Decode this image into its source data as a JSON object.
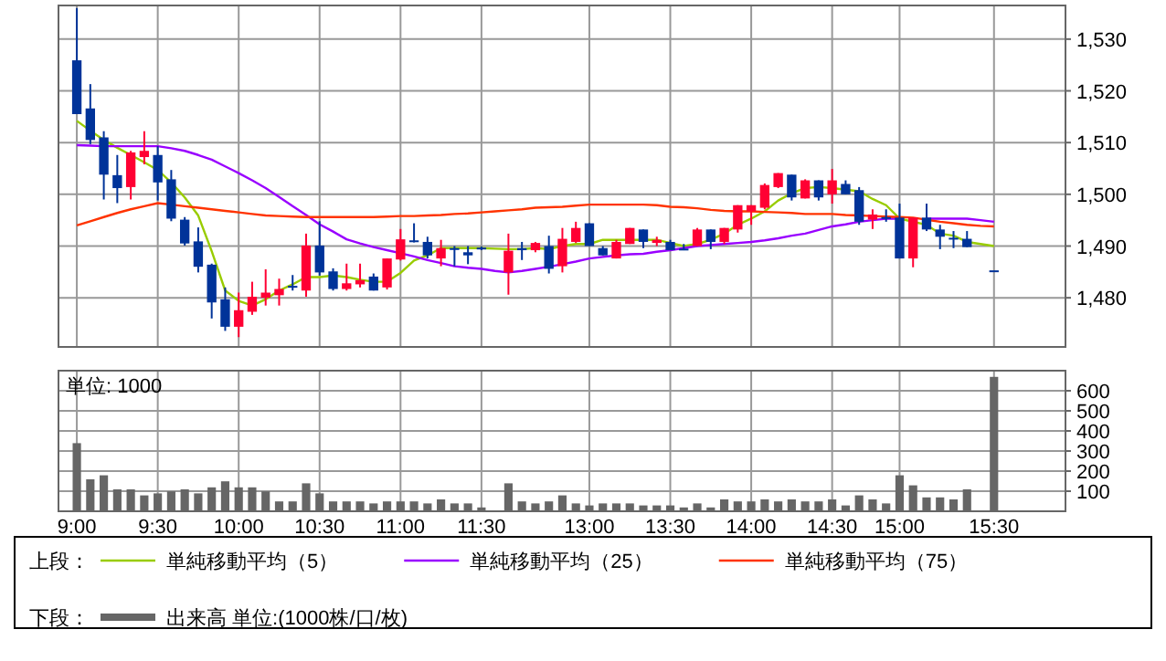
{
  "chart_data": [
    {
      "type": "candlestick",
      "categories": [
        null,
        null,
        null,
        null,
        null,
        null,
        null,
        null,
        null,
        null,
        null,
        null,
        null,
        null,
        null,
        null,
        null,
        null,
        null,
        null,
        null,
        null,
        null,
        null,
        null,
        null,
        null,
        null,
        null,
        null,
        null,
        null,
        null,
        null,
        null,
        null,
        null,
        null,
        null,
        null,
        null,
        null,
        null,
        null,
        null,
        null,
        null,
        null,
        null,
        null,
        null,
        null,
        null,
        null,
        null,
        null,
        null,
        null,
        null,
        null,
        null,
        null,
        null,
        null,
        null,
        null,
        null,
        null,
        null
      ],
      "ohlc": [
        [
          1525.9,
          1536,
          1515.5,
          1515.5
        ],
        [
          1516.6,
          1521.3,
          1509.7,
          1510.5
        ],
        [
          1511,
          1512.2,
          1499,
          1503.8
        ],
        [
          1503.7,
          1507.6,
          1498.3,
          1501.2
        ],
        [
          1501.4,
          1508.4,
          1499,
          1508.1
        ],
        [
          1507.2,
          1512.2,
          1505.8,
          1508.4
        ],
        [
          1507.6,
          1509.3,
          1498.8,
          1502.3
        ],
        [
          1502.9,
          1504.7,
          1494.8,
          1495.3
        ],
        [
          1495.1,
          1495.6,
          1490.1,
          1490.5
        ],
        [
          1490.9,
          1493.6,
          1484.9,
          1486
        ],
        [
          1486.4,
          1486.6,
          1476,
          1479.1
        ],
        [
          1479.7,
          1482,
          1473.6,
          1474.4
        ],
        [
          1474.4,
          1481,
          1472.4,
          1477.6
        ],
        [
          1477.3,
          1483.1,
          1476.7,
          1480.2
        ],
        [
          1480,
          1485.5,
          1478.5,
          1481
        ],
        [
          1480.5,
          1483.7,
          1478.5,
          1481.7
        ],
        [
          1482.3,
          1484.4,
          1481.4,
          1482.2
        ],
        [
          1481.4,
          1492.4,
          1480.2,
          1490.1
        ],
        [
          1490.1,
          1494.8,
          1484.3,
          1484.9
        ],
        [
          1485.1,
          1485.7,
          1481.4,
          1481.7
        ],
        [
          1481.7,
          1486.6,
          1481.4,
          1482.8
        ],
        [
          1482.6,
          1486.6,
          1482,
          1483.4
        ],
        [
          1484.1,
          1484.7,
          1481.4,
          1481.4
        ],
        [
          1482,
          1487.6,
          1481.6,
          1487.6
        ],
        [
          1487.4,
          1493.3,
          1487.2,
          1491.3
        ],
        [
          1491.1,
          1494.4,
          1490.7,
          1491
        ],
        [
          1490.8,
          1491.8,
          1487.6,
          1488.2
        ],
        [
          1487.6,
          1491.2,
          1486.1,
          1489.6
        ],
        [
          1489.6,
          1490,
          1486.1,
          1489.4
        ],
        [
          1488.8,
          1490,
          1486.5,
          1488.2
        ],
        [
          1489.7,
          1489.9,
          1489.2,
          1489.6
        ],
        null,
        [
          1484.9,
          1492.4,
          1480.6,
          1489.1
        ],
        [
          1489.6,
          1490.8,
          1487.3,
          1489.2
        ],
        [
          1489.2,
          1490.8,
          1488.8,
          1490.6
        ],
        [
          1490,
          1492,
          1484.7,
          1485.6
        ],
        [
          1486.1,
          1493.5,
          1484.9,
          1491.4
        ],
        [
          1490.8,
          1494.7,
          1490.6,
          1493.5
        ],
        [
          1494.4,
          1494.4,
          1490,
          1490
        ],
        [
          1489.6,
          1490,
          1488.2,
          1488.2
        ],
        [
          1487.6,
          1491.2,
          1487.6,
          1490.8
        ],
        [
          1490.4,
          1493.5,
          1490.4,
          1493.5
        ],
        [
          1493.2,
          1493.2,
          1489.6,
          1490.8
        ],
        [
          1490.6,
          1491.8,
          1490,
          1491.2
        ],
        [
          1490.8,
          1491.2,
          1489.2,
          1489.2
        ],
        [
          1489.5,
          1490.4,
          1489.2,
          1489.4
        ],
        [
          1490,
          1493.5,
          1490,
          1493.2
        ],
        [
          1493.2,
          1493.2,
          1489.4,
          1490.8
        ],
        [
          1490.8,
          1493.5,
          1490.4,
          1493.5
        ],
        [
          1493.2,
          1497.9,
          1492.6,
          1497.9
        ],
        [
          1496.7,
          1497.9,
          1494.1,
          1497.9
        ],
        [
          1497.4,
          1502.1,
          1497.1,
          1501.8
        ],
        [
          1501.4,
          1504.1,
          1501.2,
          1504.1
        ],
        [
          1503.8,
          1503.8,
          1498.8,
          1499.4
        ],
        [
          1499.2,
          1502.9,
          1499.2,
          1502.7
        ],
        [
          1502.7,
          1502.7,
          1498.8,
          1499.4
        ],
        [
          1500,
          1504.9,
          1498.2,
          1502.7
        ],
        [
          1502,
          1502.7,
          1500,
          1500
        ],
        [
          1500.8,
          1501.4,
          1494.1,
          1494.7
        ],
        [
          1495.1,
          1497.1,
          1493.3,
          1496.1
        ],
        [
          1495.6,
          1497.1,
          1494.7,
          1495.5
        ],
        [
          1495.5,
          1498.2,
          1487.6,
          1487.6
        ],
        [
          1487.6,
          1495.5,
          1485.9,
          1495.5
        ],
        [
          1495.5,
          1498.2,
          1492.9,
          1493.2
        ],
        [
          1493.2,
          1494.1,
          1489.4,
          1491.8
        ],
        [
          1491.6,
          1492.9,
          1489.6,
          1491.5
        ],
        [
          1491.4,
          1492.9,
          1489.8,
          1489.8
        ],
        null,
        [
          1485.3,
          1485.3,
          1485.3,
          1485.3
        ]
      ],
      "colors": [
        "#003399",
        "#003399",
        "#003399",
        "#003399",
        "#ff0033",
        "#ff0033",
        "#003399",
        "#003399",
        "#003399",
        "#003399",
        "#003399",
        "#003399",
        "#ff0033",
        "#ff0033",
        "#ff0033",
        "#ff0033",
        "#003399",
        "#ff0033",
        "#003399",
        "#003399",
        "#ff0033",
        "#ff0033",
        "#003399",
        "#ff0033",
        "#ff0033",
        "#003399",
        "#003399",
        "#ff0033",
        "#003399",
        "#003399",
        "#003399",
        null,
        "#ff0033",
        "#003399",
        "#ff0033",
        "#003399",
        "#ff0033",
        "#ff0033",
        "#003399",
        "#003399",
        "#ff0033",
        "#ff0033",
        "#003399",
        "#ff0033",
        "#003399",
        "#003399",
        "#ff0033",
        "#003399",
        "#ff0033",
        "#ff0033",
        "#ff0033",
        "#ff0033",
        "#ff0033",
        "#003399",
        "#ff0033",
        "#003399",
        "#ff0033",
        "#003399",
        "#003399",
        "#ff0033",
        "#003399",
        "#003399",
        "#ff0033",
        "#003399",
        "#003399",
        "#003399",
        "#003399",
        null,
        "#003399"
      ],
      "series": [
        {
          "type": "line",
          "name": "単純移動平均（5）",
          "color": "#99cc00",
          "values": [
            1514.2,
            1512.3,
            1510.5,
            1509,
            1507.6,
            1506.2,
            1504.7,
            1502.3,
            1499.4,
            1495.9,
            1489,
            1481.4,
            1479.4,
            1478.5,
            1479.7,
            1481.4,
            1482.6,
            1484,
            1484,
            1484.3,
            1484,
            1483.5,
            1483.1,
            1483.1,
            1484.8,
            1487.2,
            1488.2,
            1489.6,
            1489.6,
            1489.6,
            1489.6,
            1489.5,
            1489.4,
            1489.4,
            1489.6,
            1489.4,
            1490,
            1490.4,
            1490.4,
            1491.2,
            1491.2,
            1491.2,
            1491.2,
            1491.2,
            1490.6,
            1490,
            1490.4,
            1491.2,
            1492.4,
            1494.1,
            1495.3,
            1496.7,
            1498.8,
            1500.2,
            1501.2,
            1501.4,
            1501.2,
            1500.9,
            1500.6,
            1499.1,
            1497.9,
            1495.3,
            1494.7,
            1494.1,
            1492.4,
            1492,
            1490.8,
            1490.4,
            1490
          ]
        },
        {
          "type": "line",
          "name": "単純移動平均（25）",
          "color": "#9900ff",
          "values": [
            1509.5,
            1509.4,
            1509.3,
            1509.3,
            1509.3,
            1509.3,
            1509.3,
            1508.9,
            1508.4,
            1507.6,
            1506.7,
            1505.4,
            1504.1,
            1502.7,
            1501.2,
            1499.5,
            1497.7,
            1496,
            1494.2,
            1492.8,
            1491.3,
            1490.5,
            1489.8,
            1489.2,
            1488.6,
            1488,
            1487.3,
            1486.7,
            1486.1,
            1485.8,
            1485.6,
            1485.2,
            1484.9,
            1485.2,
            1485.6,
            1486,
            1486.5,
            1487,
            1487.6,
            1487.9,
            1488.2,
            1488.4,
            1488.5,
            1488.9,
            1489.2,
            1489.6,
            1490,
            1490.2,
            1490.4,
            1490.6,
            1490.8,
            1491.1,
            1491.5,
            1492,
            1492.4,
            1493.1,
            1493.8,
            1494.2,
            1494.7,
            1495,
            1495.3,
            1495.3,
            null,
            1495.3,
            1495.3,
            1495.3,
            1495.3,
            1495,
            1494.7
          ]
        },
        {
          "type": "line",
          "name": "単純移動平均（75）",
          "color": "#ff3300",
          "values": [
            1494,
            1494.8,
            1495.6,
            1496.4,
            1497.1,
            1497.7,
            1498.3,
            1498,
            1497.7,
            1497.4,
            1497.1,
            1496.8,
            1496.5,
            1496.2,
            1495.9,
            1495.8,
            1495.7,
            1495.6,
            1495.6,
            1495.6,
            1495.6,
            1495.6,
            1495.6,
            1495.7,
            1495.8,
            1495.8,
            1495.9,
            1496,
            1496.2,
            1496.3,
            1496.5,
            1496.7,
            1496.9,
            1497.1,
            1497.4,
            1497.5,
            1497.6,
            1497.8,
            1498,
            1498,
            1498,
            1498,
            1498,
            1497.9,
            1497.6,
            1497.5,
            1497.3,
            1497,
            1496.8,
            1496.7,
            1496.7,
            1496.6,
            1496.5,
            1496.4,
            1496.2,
            1496.2,
            1496.2,
            1496,
            1495.9,
            1495.8,
            1495.7,
            1495.6,
            1495.5,
            1495.1,
            1494.7,
            1494.4,
            1494.1,
            1493.9,
            1493.8
          ]
        }
      ],
      "ylim": [
        1470.5,
        1536.5
      ],
      "yticks": [
        {
          "value": 1480,
          "label": "1,480"
        },
        {
          "value": 1490,
          "label": "1,490"
        },
        {
          "value": 1500,
          "label": "1,500"
        },
        {
          "value": 1510,
          "label": "1,510"
        },
        {
          "value": 1520,
          "label": "1,520"
        },
        {
          "value": 1530,
          "label": "1,530"
        }
      ],
      "grid": true,
      "tick_labels": "y",
      "legend": "bottom",
      "legend_title": "上段："
    },
    {
      "type": "bar",
      "categories": [
        "9:00",
        null,
        null,
        null,
        null,
        null,
        "9:30",
        null,
        null,
        null,
        null,
        null,
        "10:00",
        null,
        null,
        null,
        null,
        null,
        "10:30",
        null,
        null,
        null,
        null,
        null,
        "11:00",
        null,
        null,
        null,
        null,
        null,
        "11:30",
        null,
        null,
        null,
        null,
        null,
        null,
        null,
        "13:00",
        null,
        null,
        null,
        null,
        null,
        "13:30",
        null,
        null,
        null,
        null,
        null,
        "14:00",
        null,
        null,
        null,
        null,
        null,
        "14:30",
        null,
        null,
        null,
        null,
        "15:00",
        null,
        null,
        null,
        null,
        null,
        null,
        "15:30"
      ],
      "series": [
        {
          "name": "出来高 単位:(1000株/口/枚)",
          "color": "#666666",
          "values": [
            330,
            150,
            170,
            100,
            100,
            70,
            80,
            90,
            100,
            80,
            110,
            140,
            110,
            110,
            90,
            40,
            40,
            130,
            80,
            40,
            40,
            40,
            30,
            40,
            40,
            40,
            30,
            50,
            30,
            30,
            10,
            null,
            130,
            40,
            30,
            40,
            70,
            30,
            20,
            30,
            30,
            30,
            20,
            20,
            20,
            10,
            30,
            10,
            50,
            40,
            40,
            50,
            40,
            50,
            40,
            40,
            50,
            20,
            70,
            50,
            30,
            170,
            120,
            60,
            60,
            50,
            100,
            null,
            660
          ]
        }
      ],
      "ylim": [
        0,
        700
      ],
      "yticks": [
        100,
        200,
        300,
        400,
        500,
        600
      ],
      "grid": true,
      "legend": "bottom",
      "legend_title": "下段：",
      "annotations": [
        "単位: 1000"
      ]
    }
  ]
}
